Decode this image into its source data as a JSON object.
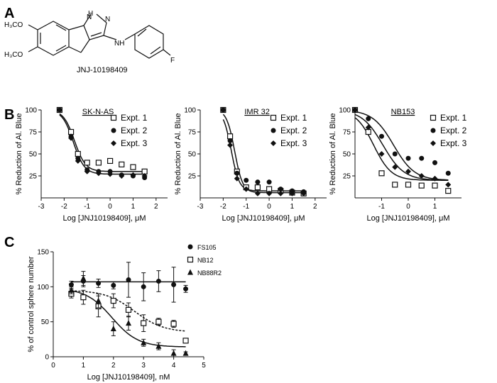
{
  "panel_labels": {
    "a": "A",
    "b": "B",
    "c": "C"
  },
  "structure": {
    "compound_name": "JNJ-10198409",
    "atom_labels": {
      "nh": "H",
      "n_ring": "N",
      "n_ring2": "N",
      "nh_amine": "NH",
      "methoxy1": "H₃CO",
      "methoxy2": "H₃CO",
      "fluoro": "F"
    }
  },
  "chart_data": [
    {
      "type": "scatter",
      "title": "SK-N-AS",
      "xlabel": "Log [JNJ10198409], μM",
      "ylabel": "% Reduction of Al. Blue",
      "xlim": [
        -3,
        2.5
      ],
      "ylim": [
        0,
        100
      ],
      "xticks": [
        -3,
        -2,
        -1,
        0,
        1,
        2
      ],
      "yticks": [
        25,
        50,
        75,
        100
      ],
      "legend_position": "top-right",
      "series": [
        {
          "name": "Expt. 1",
          "marker": "open-square",
          "x": [
            -2.2,
            -1.7,
            -1.4,
            -1.0,
            -0.5,
            0,
            0.5,
            1.0,
            1.5
          ],
          "y": [
            100,
            75,
            50,
            40,
            40,
            42,
            38,
            35,
            30
          ]
        },
        {
          "name": "Expt. 2",
          "marker": "filled-circle",
          "x": [
            -2.2,
            -1.7,
            -1.4,
            -1.0,
            -0.5,
            0,
            0.5,
            1.0,
            1.5
          ],
          "y": [
            100,
            70,
            45,
            32,
            30,
            30,
            26,
            25,
            23
          ]
        },
        {
          "name": "Expt. 3",
          "marker": "filled-diamond",
          "x": [
            -2.2,
            -1.7,
            -1.4,
            -1.0,
            -0.5,
            0,
            0.5,
            1.0,
            1.5
          ],
          "y": [
            100,
            68,
            42,
            30,
            28,
            27,
            25,
            26,
            25
          ]
        }
      ],
      "fits": [
        {
          "bottom": 30,
          "top": 100,
          "logec50": -1.55,
          "hill": 1.8
        },
        {
          "bottom": 27,
          "top": 100,
          "logec50": -1.6,
          "hill": 1.8
        }
      ]
    },
    {
      "type": "scatter",
      "title": "IMR 32",
      "xlabel": "Log [JNJ10198409], μM",
      "ylabel": "% Reduction of Al. Blue",
      "xlim": [
        -3,
        2.5
      ],
      "ylim": [
        0,
        100
      ],
      "xticks": [
        -3,
        -2,
        -1,
        0,
        1,
        2
      ],
      "yticks": [
        25,
        50,
        75,
        100
      ],
      "legend_position": "top-right",
      "series": [
        {
          "name": "Expt. 1",
          "marker": "open-square",
          "x": [
            -2.0,
            -1.7,
            -1.4,
            -1.0,
            -0.5,
            0,
            0.5,
            1.0,
            1.5
          ],
          "y": [
            100,
            70,
            30,
            12,
            12,
            10,
            8,
            6,
            5
          ]
        },
        {
          "name": "Expt. 2",
          "marker": "filled-circle",
          "x": [
            -2.0,
            -1.7,
            -1.4,
            -1.0,
            -0.5,
            0,
            0.5,
            1.0,
            1.5
          ],
          "y": [
            100,
            65,
            28,
            20,
            18,
            18,
            10,
            8,
            7
          ]
        },
        {
          "name": "Expt. 3",
          "marker": "filled-diamond",
          "x": [
            -2.0,
            -1.7,
            -1.4,
            -1.0,
            -0.5,
            0,
            0.5,
            1.0,
            1.5
          ],
          "y": [
            100,
            60,
            22,
            10,
            5,
            5,
            5,
            5,
            5
          ]
        }
      ],
      "fits": [
        {
          "bottom": 8,
          "top": 100,
          "logec50": -1.65,
          "hill": 2.5
        },
        {
          "bottom": 6,
          "top": 100,
          "logec50": -1.5,
          "hill": 2.5
        }
      ]
    },
    {
      "type": "scatter",
      "title": "NB153",
      "xlabel": "Log [JNJ10198409], μM",
      "ylabel": "% Reduction of Al. Blue",
      "xlim": [
        -2,
        2
      ],
      "ylim": [
        0,
        100
      ],
      "xticks": [
        -1,
        0,
        1
      ],
      "yticks": [
        25,
        50,
        75,
        100
      ],
      "legend_position": "top-right",
      "series": [
        {
          "name": "Expt. 1",
          "marker": "open-square",
          "x": [
            -2.0,
            -1.5,
            -1.0,
            -0.5,
            0,
            0.5,
            1.0,
            1.5
          ],
          "y": [
            100,
            75,
            28,
            15,
            15,
            14,
            14,
            8
          ]
        },
        {
          "name": "Expt. 2",
          "marker": "filled-circle",
          "x": [
            -2.0,
            -1.5,
            -1.0,
            -0.5,
            0,
            0.5,
            1.0,
            1.5
          ],
          "y": [
            100,
            90,
            70,
            50,
            45,
            45,
            40,
            28
          ]
        },
        {
          "name": "Expt. 3",
          "marker": "filled-diamond",
          "x": [
            -2.0,
            -1.5,
            -1.0,
            -0.5,
            0,
            0.5,
            1.0,
            1.5
          ],
          "y": [
            100,
            80,
            50,
            35,
            30,
            25,
            22,
            15
          ]
        }
      ],
      "fits": [
        {
          "bottom": 20,
          "top": 100,
          "logec50": -1.3,
          "hill": 1.3
        },
        {
          "bottom": 20,
          "top": 100,
          "logec50": -0.55,
          "hill": 1.1
        },
        {
          "bottom": 20,
          "top": 100,
          "logec50": -0.95,
          "hill": 1.1
        }
      ]
    },
    {
      "type": "scatter",
      "title": "",
      "xlabel": "Log [JNJ10198409], nM",
      "ylabel": "% of control sphere number",
      "xlim": [
        0,
        5
      ],
      "ylim": [
        0,
        150
      ],
      "xticks": [
        0,
        1,
        2,
        3,
        4,
        5
      ],
      "yticks": [
        0,
        50,
        100,
        150
      ],
      "legend_position": "top-right",
      "series": [
        {
          "name": "FS105",
          "marker": "filled-circle",
          "x": [
            0.6,
            1.0,
            1.5,
            2.0,
            2.5,
            3.0,
            3.5,
            4.0,
            4.4
          ],
          "y": [
            103,
            108,
            105,
            102,
            110,
            100,
            108,
            103,
            97
          ],
          "err": [
            5,
            8,
            6,
            5,
            25,
            20,
            15,
            25,
            5
          ]
        },
        {
          "name": "NB12",
          "marker": "open-square",
          "x": [
            0.6,
            1.0,
            1.5,
            2.0,
            2.5,
            3.0,
            3.5,
            4.0,
            4.4
          ],
          "y": [
            90,
            85,
            72,
            80,
            67,
            48,
            50,
            47,
            23
          ],
          "err": [
            6,
            10,
            15,
            10,
            10,
            12,
            5,
            5,
            3
          ]
        },
        {
          "name": "NB88R2",
          "marker": "filled-triangle",
          "x": [
            0.6,
            1.0,
            1.5,
            2.0,
            2.5,
            3.0,
            3.5,
            4.0,
            4.4
          ],
          "y": [
            95,
            112,
            80,
            40,
            48,
            20,
            15,
            5,
            5
          ],
          "err": [
            5,
            10,
            10,
            10,
            10,
            5,
            5,
            5,
            2
          ]
        }
      ],
      "fits": [
        {
          "bottom": 107,
          "top": 107,
          "logec50": 2.5,
          "hill": 1,
          "dashed": false
        },
        {
          "bottom": 35,
          "top": 95,
          "logec50": 2.7,
          "hill": 0.9,
          "dashed": true
        },
        {
          "bottom": 14,
          "top": 98,
          "logec50": 1.95,
          "hill": 1.0,
          "dashed": false
        }
      ]
    }
  ]
}
